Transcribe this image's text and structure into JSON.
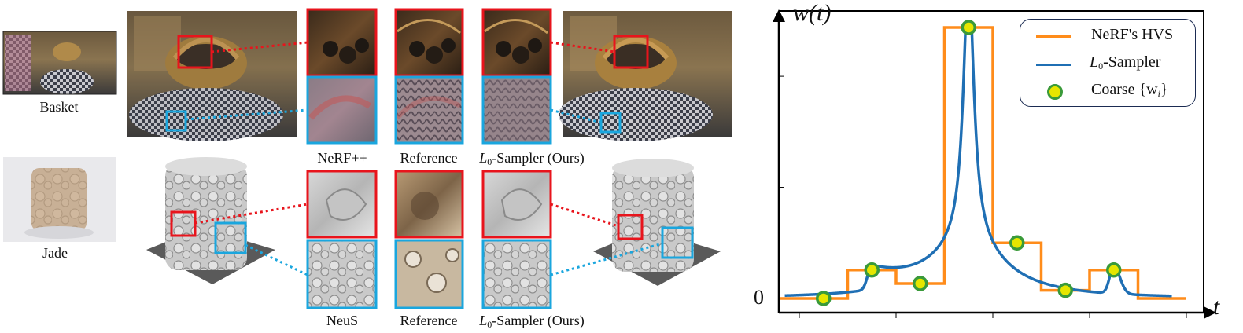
{
  "captions": {
    "basket": "Basket",
    "jade": "Jade",
    "row1": {
      "left": "NeRF++",
      "mid": "Reference",
      "right_main": "-Sampler (Ours)"
    },
    "row2": {
      "left": "NeuS",
      "mid": "Reference",
      "right_main": "-Sampler (Ours)"
    },
    "l0_letter": "L",
    "l0_sub": "0"
  },
  "chart_data": {
    "type": "line",
    "ylabel": "w(t)",
    "xlabel": "t",
    "y_zero_label": "0",
    "legend_placement": "top-right",
    "legend": [
      {
        "label": "NeRF's HVS",
        "color": "#ff8c1a"
      },
      {
        "label": "-Sampler",
        "prefix": "L",
        "sub": "0",
        "color": "#1f6fb4"
      },
      {
        "label": "Coarse {w",
        "sub": "i",
        "suffix": "}",
        "color": "#e8e800",
        "edge": "#3a9a3a"
      }
    ],
    "colors": {
      "hvs": "#ff8c1a",
      "sampler": "#1f6fb4",
      "coarse_fill": "#e6e600",
      "coarse_edge": "#3a9a3a"
    },
    "xlim": [
      0,
      10
    ],
    "ylim": [
      0,
      1.05
    ],
    "coarse_points": [
      {
        "x": 0.5,
        "y": 0.0
      },
      {
        "x": 1.5,
        "y": 0.105
      },
      {
        "x": 2.5,
        "y": 0.055
      },
      {
        "x": 3.5,
        "y": 1.0
      },
      {
        "x": 4.5,
        "y": 0.205
      },
      {
        "x": 5.5,
        "y": 0.03
      },
      {
        "x": 6.5,
        "y": 0.105
      }
    ],
    "hvs_steps": [
      {
        "x0": -0.4,
        "x1": 0.5,
        "y": 0.0
      },
      {
        "x0": 0.5,
        "x1": 1.0,
        "y": 0.0
      },
      {
        "x0": 1.0,
        "x1": 2.0,
        "y": 0.105
      },
      {
        "x0": 2.0,
        "x1": 3.0,
        "y": 0.055
      },
      {
        "x0": 3.0,
        "x1": 4.0,
        "y": 1.0
      },
      {
        "x0": 4.0,
        "x1": 5.0,
        "y": 0.205
      },
      {
        "x0": 5.0,
        "x1": 6.0,
        "y": 0.03
      },
      {
        "x0": 6.0,
        "x1": 7.0,
        "y": 0.105
      },
      {
        "x0": 7.0,
        "x1": 8.0,
        "y": 0.0
      }
    ],
    "xticks": [
      0,
      2,
      4,
      6,
      8
    ],
    "yticks": [
      0,
      0.41,
      0.82
    ]
  }
}
